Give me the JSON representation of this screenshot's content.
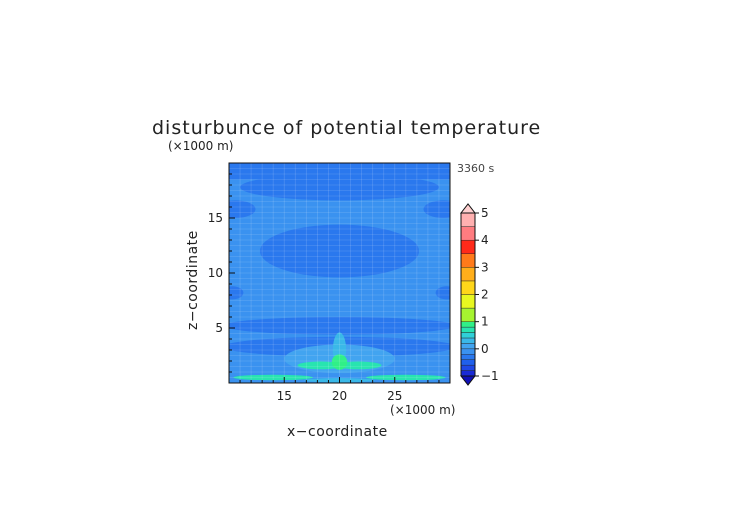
{
  "chart_data": {
    "type": "heatmap",
    "title": "disturbunce of potential temperature",
    "xlabel": "x−coordinate",
    "ylabel": "z−coordinate",
    "x_unit": "(×1000 m)",
    "y_unit": "(×1000 m)",
    "time_label": "3360 s",
    "xlim": [
      10,
      30
    ],
    "ylim": [
      0,
      20
    ],
    "x_ticks": [
      15,
      20,
      25
    ],
    "y_ticks": [
      5,
      10,
      15
    ],
    "colorbar": {
      "min": -1,
      "max": 5,
      "tick_values": [
        -1,
        0,
        1,
        2,
        3,
        4,
        5
      ],
      "tick_labels": [
        "−1",
        "0",
        "1",
        "2",
        "3",
        "4",
        "5"
      ],
      "levels": [
        {
          "lo": -1.0,
          "hi": -0.8,
          "color": "#1a2bd6"
        },
        {
          "lo": -0.8,
          "hi": -0.6,
          "color": "#1f48e6"
        },
        {
          "lo": -0.6,
          "hi": -0.4,
          "color": "#2060ec"
        },
        {
          "lo": -0.4,
          "hi": -0.2,
          "color": "#2a78ee"
        },
        {
          "lo": -0.2,
          "hi": 0.0,
          "color": "#3a92f0"
        },
        {
          "lo": 0.0,
          "hi": 0.2,
          "color": "#42a4f0"
        },
        {
          "lo": 0.2,
          "hi": 0.4,
          "color": "#3ab8e8"
        },
        {
          "lo": 0.4,
          "hi": 0.6,
          "color": "#30d0d8"
        },
        {
          "lo": 0.6,
          "hi": 0.8,
          "color": "#28e4b0"
        },
        {
          "lo": 0.8,
          "hi": 1.0,
          "color": "#30f088"
        },
        {
          "lo": 1.0,
          "hi": 1.5,
          "color": "#a6f430"
        },
        {
          "lo": 1.5,
          "hi": 2.0,
          "color": "#e8f820"
        },
        {
          "lo": 2.0,
          "hi": 2.5,
          "color": "#ffd61a"
        },
        {
          "lo": 2.5,
          "hi": 3.0,
          "color": "#ffae1a"
        },
        {
          "lo": 3.0,
          "hi": 3.5,
          "color": "#ff7a1a"
        },
        {
          "lo": 3.5,
          "hi": 4.0,
          "color": "#ff2a1a"
        },
        {
          "lo": 4.0,
          "hi": 4.5,
          "color": "#ff7c80"
        },
        {
          "lo": 4.5,
          "hi": 5.0,
          "color": "#ffb0b0"
        }
      ],
      "under_color": "#1010b8",
      "over_color": "#ffd0d0"
    },
    "field": {
      "background": "#3a92f0",
      "regions": [
        {
          "shape": "rect",
          "x": [
            10,
            30
          ],
          "z": [
            18.5,
            20
          ],
          "value": -0.3
        },
        {
          "shape": "ellipse",
          "cx": 20,
          "cz": 17.8,
          "rx": 9,
          "rz": 1.2,
          "value": -0.3
        },
        {
          "shape": "ellipse",
          "cx": 10.6,
          "cz": 15.8,
          "rx": 1.8,
          "rz": 0.8,
          "value": -0.3
        },
        {
          "shape": "ellipse",
          "cx": 29.4,
          "cz": 15.8,
          "rx": 1.8,
          "rz": 0.8,
          "value": -0.3
        },
        {
          "shape": "ellipse",
          "cx": 20,
          "cz": 12.0,
          "rx": 7.2,
          "rz": 2.4,
          "value": -0.3
        },
        {
          "shape": "ellipse",
          "cx": 10.3,
          "cz": 8.2,
          "rx": 1.0,
          "rz": 0.6,
          "value": -0.3
        },
        {
          "shape": "ellipse",
          "cx": 29.7,
          "cz": 8.2,
          "rx": 1.0,
          "rz": 0.6,
          "value": -0.3
        },
        {
          "shape": "ellipse",
          "cx": 20,
          "cz": 5.2,
          "rx": 10.5,
          "rz": 0.8,
          "value": -0.3
        },
        {
          "shape": "ellipse",
          "cx": 20,
          "cz": 3.3,
          "rx": 10.5,
          "rz": 0.9,
          "value": -0.3
        },
        {
          "shape": "ellipse",
          "cx": 20,
          "cz": 2.2,
          "rx": 5.0,
          "rz": 1.3,
          "value": 0.1
        },
        {
          "shape": "ellipse",
          "cx": 20,
          "cz": 3.0,
          "rx": 0.6,
          "rz": 1.6,
          "value": 0.3
        },
        {
          "shape": "ellipse",
          "cx": 18.3,
          "cz": 1.6,
          "rx": 2.1,
          "rz": 0.35,
          "value": 0.7
        },
        {
          "shape": "ellipse",
          "cx": 21.7,
          "cz": 1.6,
          "rx": 2.1,
          "rz": 0.35,
          "value": 0.7
        },
        {
          "shape": "ellipse",
          "cx": 20,
          "cz": 1.9,
          "rx": 0.7,
          "rz": 0.7,
          "value": 0.9
        },
        {
          "shape": "ellipse",
          "cx": 14,
          "cz": 0.5,
          "rx": 3.6,
          "rz": 0.25,
          "value": 0.7
        },
        {
          "shape": "ellipse",
          "cx": 26,
          "cz": 0.5,
          "rx": 3.6,
          "rz": 0.25,
          "value": 0.7
        },
        {
          "shape": "ellipse",
          "cx": 20,
          "cz": 0.25,
          "rx": 3.2,
          "rz": 0.2,
          "value": 0.3
        }
      ]
    },
    "grid": true
  }
}
